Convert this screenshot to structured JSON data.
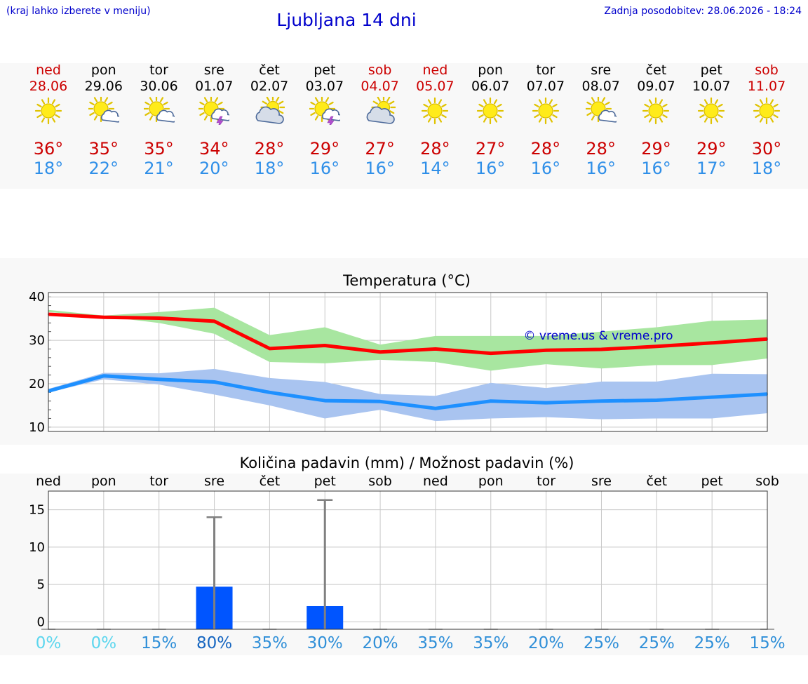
{
  "header": {
    "left_note": "(kraj lahko izberete v meniju)",
    "title": "Ljubljana 14 dni",
    "updated": "Zadnja posodobitev: 28.06.2026 - 18:24"
  },
  "watermark": "© vreme.us & vreme.pro",
  "days": [
    {
      "name": "ned",
      "date": "28.06",
      "weekend": true,
      "icon": "sun-icon",
      "max": "36°",
      "min": "18°"
    },
    {
      "name": "pon",
      "date": "29.06",
      "weekend": false,
      "icon": "sun-cloud-icon",
      "max": "35°",
      "min": "22°"
    },
    {
      "name": "tor",
      "date": "30.06",
      "weekend": false,
      "icon": "sun-cloud-icon",
      "max": "35°",
      "min": "21°"
    },
    {
      "name": "sre",
      "date": "01.07",
      "weekend": false,
      "icon": "sun-thunder-icon",
      "max": "34°",
      "min": "20°"
    },
    {
      "name": "čet",
      "date": "02.07",
      "weekend": false,
      "icon": "cloud-sun-icon",
      "max": "28°",
      "min": "18°"
    },
    {
      "name": "pet",
      "date": "03.07",
      "weekend": false,
      "icon": "sun-thunder-icon",
      "max": "29°",
      "min": "16°"
    },
    {
      "name": "sob",
      "date": "04.07",
      "weekend": true,
      "icon": "cloud-sun-icon",
      "max": "27°",
      "min": "16°"
    },
    {
      "name": "ned",
      "date": "05.07",
      "weekend": true,
      "icon": "sun-icon",
      "max": "28°",
      "min": "14°"
    },
    {
      "name": "pon",
      "date": "06.07",
      "weekend": false,
      "icon": "sun-icon",
      "max": "27°",
      "min": "16°"
    },
    {
      "name": "tor",
      "date": "07.07",
      "weekend": false,
      "icon": "sun-icon",
      "max": "28°",
      "min": "16°"
    },
    {
      "name": "sre",
      "date": "08.07",
      "weekend": false,
      "icon": "sun-cloud-icon",
      "max": "28°",
      "min": "16°"
    },
    {
      "name": "čet",
      "date": "09.07",
      "weekend": false,
      "icon": "sun-icon",
      "max": "29°",
      "min": "16°"
    },
    {
      "name": "pet",
      "date": "10.07",
      "weekend": false,
      "icon": "sun-icon",
      "max": "29°",
      "min": "17°"
    },
    {
      "name": "sob",
      "date": "11.07",
      "weekend": true,
      "icon": "sun-icon",
      "max": "30°",
      "min": "18°"
    }
  ],
  "colors": {
    "max_line": "#ff0000",
    "max_band": "#a8e6a0",
    "min_line": "#1e90ff",
    "min_band": "#a9c4f0",
    "rain_bar": "#0055ff",
    "rain_whisker": "#808080"
  },
  "chart_data": [
    {
      "type": "line",
      "title": "Temperatura (°C)",
      "categories": [
        "ned",
        "pon",
        "tor",
        "sre",
        "čet",
        "pet",
        "sob",
        "ned",
        "pon",
        "tor",
        "sre",
        "čet",
        "pet",
        "sob"
      ],
      "ylim": [
        9,
        41
      ],
      "yticks": [
        10,
        20,
        30,
        40
      ],
      "grid": true,
      "series": [
        {
          "values": [
            36.0,
            35.3,
            35.1,
            34.4,
            28.1,
            28.8,
            27.3,
            28.0,
            27.0,
            27.7,
            27.9,
            28.6,
            29.4,
            30.3
          ],
          "band_low": [
            36.5,
            35.5,
            34.0,
            31.5,
            25.0,
            24.7,
            25.5,
            25.0,
            23.0,
            24.5,
            23.5,
            24.3,
            24.3,
            25.8
          ],
          "band_high": [
            37.0,
            35.7,
            36.5,
            37.5,
            31.2,
            33.0,
            29.0,
            31.0,
            31.0,
            31.0,
            32.0,
            33.0,
            34.5,
            34.8
          ]
        },
        {
          "values": [
            18.3,
            21.8,
            21.0,
            20.4,
            18.0,
            16.1,
            15.9,
            14.3,
            16.0,
            15.6,
            16.0,
            16.2,
            16.9,
            17.6
          ],
          "band_low": [
            18.0,
            21.0,
            19.8,
            17.5,
            15.0,
            12.0,
            14.0,
            11.4,
            12.0,
            12.3,
            11.8,
            12.0,
            12.0,
            13.2
          ],
          "band_high": [
            18.8,
            22.5,
            22.4,
            23.4,
            21.3,
            20.4,
            17.6,
            17.2,
            20.2,
            19.0,
            20.5,
            20.5,
            22.3,
            22.2
          ]
        }
      ]
    },
    {
      "type": "bar",
      "title": "Količina padavin (mm) / Možnost padavin (%)",
      "categories": [
        "ned",
        "pon",
        "tor",
        "sre",
        "čet",
        "pet",
        "sob",
        "ned",
        "pon",
        "tor",
        "sre",
        "čet",
        "pet",
        "sob"
      ],
      "values": [
        0,
        0,
        0,
        4.7,
        0,
        2.1,
        0,
        0,
        0,
        0,
        0,
        0,
        0,
        0
      ],
      "whisker_high": [
        0,
        0,
        0,
        14.0,
        0,
        16.3,
        0,
        0,
        0,
        0,
        0,
        0,
        0,
        0
      ],
      "probability": [
        "0%",
        "0%",
        "15%",
        "80%",
        "35%",
        "30%",
        "20%",
        "35%",
        "35%",
        "20%",
        "25%",
        "25%",
        "25%",
        "15%"
      ],
      "ylim": [
        -1,
        17.5
      ],
      "yticks": [
        0,
        5,
        10,
        15
      ],
      "grid": true
    }
  ]
}
